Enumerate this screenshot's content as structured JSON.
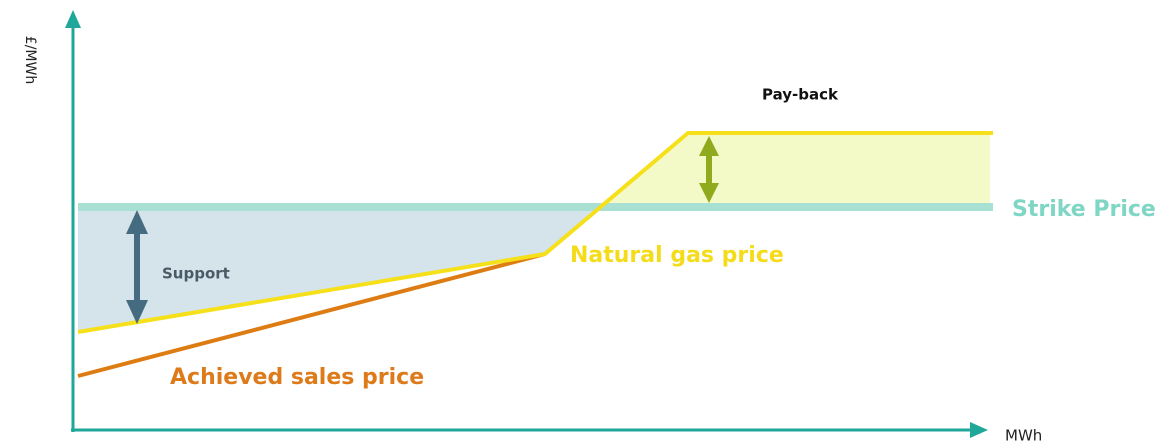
{
  "axes": {
    "y_label": "£/MWh",
    "x_label": "MWh"
  },
  "labels": {
    "payback": "Pay-back",
    "strike_price": "Strike Price",
    "natural_gas_price": "Natural gas price",
    "support": "Support",
    "achieved_sales_price": "Achieved sales price"
  }
}
